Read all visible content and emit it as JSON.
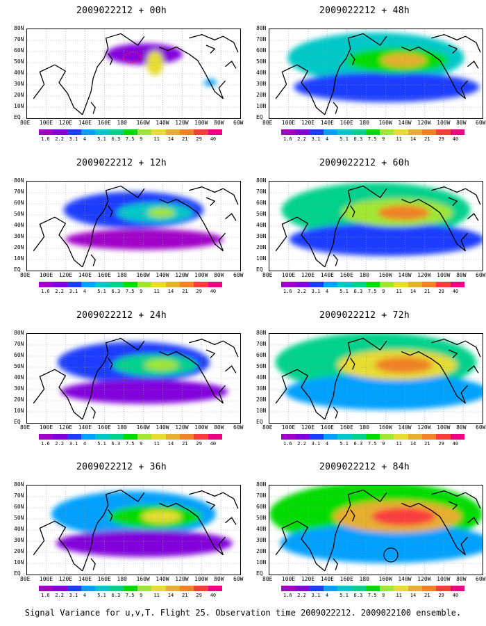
{
  "caption": "Signal Variance for u,v,T. Flight 25. Observation time 2009022212. 2009022100 ensemble.",
  "chart_data": {
    "type": "heatmap",
    "region": {
      "lon_range": [
        "80E",
        "60W"
      ],
      "lat_range": [
        "EQ",
        "80N"
      ]
    },
    "lat_labels": [
      "80N",
      "70N",
      "60N",
      "50N",
      "40N",
      "30N",
      "20N",
      "10N",
      "EQ"
    ],
    "lon_labels": [
      "80E",
      "100E",
      "120E",
      "140E",
      "160E",
      "180",
      "160W",
      "140W",
      "120W",
      "100W",
      "80W",
      "60W"
    ],
    "colorbar": {
      "levels": [
        "1.6",
        "2.2",
        "3.1",
        "4",
        "5.1",
        "6.3",
        "7.5",
        "9",
        "11",
        "14",
        "21",
        "29",
        "40"
      ],
      "colors": [
        "#a000c8",
        "#8200dc",
        "#1e3cff",
        "#00a0ff",
        "#00c8c8",
        "#00d28c",
        "#00dc00",
        "#a0e632",
        "#e6dc32",
        "#e6af2d",
        "#f08228",
        "#fa3c3c",
        "#f00082"
      ]
    },
    "panels": [
      {
        "title": "2009022212 + 00h",
        "lead_hours": 0,
        "max_contour_level": "11"
      },
      {
        "title": "2009022212 + 48h",
        "lead_hours": 48,
        "max_contour_level": "14"
      },
      {
        "title": "2009022212 + 12h",
        "lead_hours": 12,
        "max_contour_level": "11"
      },
      {
        "title": "2009022212 + 60h",
        "lead_hours": 60,
        "max_contour_level": "14"
      },
      {
        "title": "2009022212 + 24h",
        "lead_hours": 24,
        "max_contour_level": "11"
      },
      {
        "title": "2009022212 + 72h",
        "lead_hours": 72,
        "max_contour_level": "21"
      },
      {
        "title": "2009022212 + 36h",
        "lead_hours": 36,
        "max_contour_level": "11"
      },
      {
        "title": "2009022212 + 84h",
        "lead_hours": 84,
        "max_contour_level": "21"
      }
    ]
  }
}
